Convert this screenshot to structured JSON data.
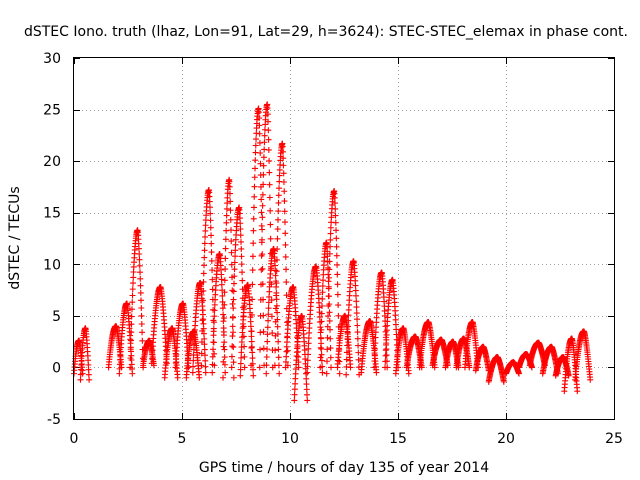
{
  "chart_data": {
    "type": "scatter",
    "title": "dSTEC Iono. truth (lhaz, Lon=91, Lat=29, h=3624): STEC-STEC_elemax in phase cont.",
    "xlabel": "GPS time / hours of day 135 of year 2014",
    "ylabel": "dSTEC  / TECUs",
    "xlim": [
      0,
      25
    ],
    "ylim": [
      -5,
      30
    ],
    "xticks": [
      0,
      5,
      10,
      15,
      20,
      25
    ],
    "yticks": [
      -5,
      0,
      5,
      10,
      15,
      20,
      25,
      30
    ],
    "xtick_labels": [
      "0",
      "5",
      "10",
      "15",
      "20",
      "25"
    ],
    "ytick_labels": [
      "-5",
      "0",
      "5",
      "10",
      "15",
      "20",
      "25",
      "30"
    ],
    "grid": true,
    "marker": "+",
    "color": "#ff0000",
    "arcs": [
      {
        "start": 0.0,
        "end": 0.4,
        "base": -0.6,
        "peak": 2.6
      },
      {
        "start": 0.3,
        "end": 0.7,
        "base": -1.2,
        "peak": 3.8
      },
      {
        "start": 1.6,
        "end": 2.2,
        "base": 0.0,
        "peak": 4.0
      },
      {
        "start": 2.1,
        "end": 2.7,
        "base": -0.6,
        "peak": 6.2
      },
      {
        "start": 2.6,
        "end": 3.2,
        "base": 0.0,
        "peak": 13.3
      },
      {
        "start": 3.2,
        "end": 3.7,
        "base": 0.2,
        "peak": 2.6
      },
      {
        "start": 3.6,
        "end": 4.3,
        "base": 0.4,
        "peak": 7.8
      },
      {
        "start": 4.2,
        "end": 4.8,
        "base": -1.0,
        "peak": 3.8
      },
      {
        "start": 4.7,
        "end": 5.3,
        "base": 0.0,
        "peak": 6.2
      },
      {
        "start": 5.2,
        "end": 5.8,
        "base": -1.0,
        "peak": 3.5
      },
      {
        "start": 5.5,
        "end": 6.1,
        "base": -0.5,
        "peak": 8.2
      },
      {
        "start": 5.9,
        "end": 6.5,
        "base": 0.2,
        "peak": 17.2
      },
      {
        "start": 6.4,
        "end": 7.0,
        "base": -0.5,
        "peak": 11.0
      },
      {
        "start": 6.9,
        "end": 7.4,
        "base": -1.0,
        "peak": 18.2
      },
      {
        "start": 7.3,
        "end": 7.9,
        "base": 0.0,
        "peak": 15.5
      },
      {
        "start": 7.7,
        "end": 8.3,
        "base": -0.8,
        "peak": 8.0
      },
      {
        "start": 8.2,
        "end": 8.8,
        "base": 0.2,
        "peak": 25.1
      },
      {
        "start": 8.6,
        "end": 9.2,
        "base": 0.0,
        "peak": 25.5
      },
      {
        "start": 8.9,
        "end": 9.5,
        "base": -0.6,
        "peak": 11.5
      },
      {
        "start": 9.3,
        "end": 9.9,
        "base": 0.2,
        "peak": 21.7
      },
      {
        "start": 9.8,
        "end": 10.4,
        "base": 0.0,
        "peak": 7.8
      },
      {
        "start": 10.2,
        "end": 10.8,
        "base": -3.2,
        "peak": 5.0
      },
      {
        "start": 10.8,
        "end": 11.5,
        "base": -0.5,
        "peak": 9.8
      },
      {
        "start": 11.4,
        "end": 11.9,
        "base": 0.0,
        "peak": 12.1
      },
      {
        "start": 11.7,
        "end": 12.3,
        "base": -0.6,
        "peak": 17.1
      },
      {
        "start": 12.2,
        "end": 12.8,
        "base": 0.0,
        "peak": 5.0
      },
      {
        "start": 12.6,
        "end": 13.2,
        "base": -0.7,
        "peak": 10.3
      },
      {
        "start": 13.3,
        "end": 14.0,
        "base": -0.5,
        "peak": 4.5
      },
      {
        "start": 13.9,
        "end": 14.5,
        "base": 0.0,
        "peak": 9.2
      },
      {
        "start": 14.4,
        "end": 15.0,
        "base": 0.0,
        "peak": 8.5
      },
      {
        "start": 14.9,
        "end": 15.5,
        "base": -0.6,
        "peak": 3.8
      },
      {
        "start": 15.4,
        "end": 16.1,
        "base": 0.0,
        "peak": 3.0
      },
      {
        "start": 16.0,
        "end": 16.7,
        "base": 0.0,
        "peak": 4.4
      },
      {
        "start": 16.6,
        "end": 17.3,
        "base": 0.2,
        "peak": 2.7
      },
      {
        "start": 17.2,
        "end": 17.8,
        "base": 0.0,
        "peak": 2.5
      },
      {
        "start": 17.7,
        "end": 18.3,
        "base": 0.0,
        "peak": 2.8
      },
      {
        "start": 18.1,
        "end": 18.7,
        "base": 0.0,
        "peak": 4.4
      },
      {
        "start": 18.6,
        "end": 19.2,
        "base": -0.3,
        "peak": 2.0
      },
      {
        "start": 19.2,
        "end": 19.9,
        "base": -1.4,
        "peak": 1.0
      },
      {
        "start": 20.0,
        "end": 20.6,
        "base": -0.6,
        "peak": 0.5
      },
      {
        "start": 20.6,
        "end": 21.2,
        "base": 0.0,
        "peak": 1.3
      },
      {
        "start": 21.1,
        "end": 21.8,
        "base": 0.2,
        "peak": 2.4
      },
      {
        "start": 21.7,
        "end": 22.4,
        "base": -0.6,
        "peak": 2.0
      },
      {
        "start": 22.3,
        "end": 22.9,
        "base": -0.8,
        "peak": 1.0
      },
      {
        "start": 22.7,
        "end": 23.3,
        "base": -2.3,
        "peak": 2.8
      },
      {
        "start": 23.2,
        "end": 23.9,
        "base": -1.2,
        "peak": 3.5
      }
    ]
  }
}
